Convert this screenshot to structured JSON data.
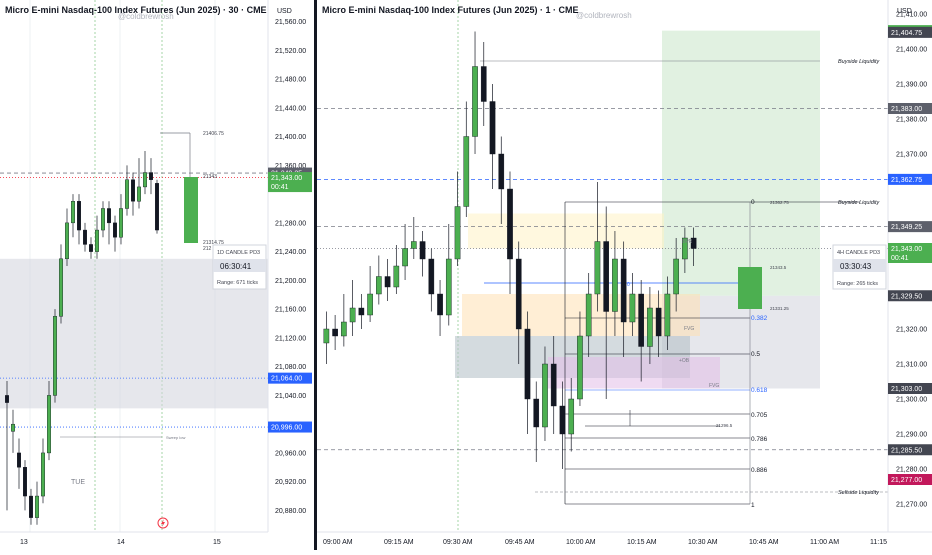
{
  "left": {
    "title": "Micro E-mini Nasdaq-100 Index Futures (Jun 2025) · 30 · CME",
    "watermark": "@coldbrewrosh",
    "currency": "USD",
    "ticks": [
      "21,560.00",
      "21,520.00",
      "21,480.00",
      "21,440.00",
      "21,400.00",
      "21,360.00",
      "21,280.00",
      "21,240.00",
      "21,200.00",
      "21,160.00",
      "21,120.00",
      "21,080.00",
      "21,040.00",
      "20,960.00",
      "20,920.00",
      "20,880.00"
    ],
    "tags": [
      {
        "text": "21,349.25",
        "sub": "",
        "color": "#5d606b"
      },
      {
        "text": "21,343.00",
        "sub": "00:41",
        "color": "#4caf50"
      },
      {
        "text": "21,064.00",
        "sub": "",
        "color": "#2962ff"
      },
      {
        "text": "20,996.00",
        "sub": "",
        "color": "#2962ff"
      }
    ],
    "xlabels": [
      "13",
      "14",
      "15"
    ],
    "day_label": "TUE",
    "annotations": {
      "high": "21406.75",
      "mid": "21343",
      "l1": "21314.75",
      "l2": "212",
      "small": "Sweep low"
    },
    "candle_box": {
      "title": "1D CANDLE PD3",
      "timer": "06:30:41",
      "range": "Range: 671 ticks"
    }
  },
  "right": {
    "title": "Micro E-mini Nasdaq-100 Index Futures (Jun 2025) · 1 · CME",
    "watermark": "@coldbrewrosh",
    "currency": "USD",
    "ticks": [
      "21,410.00",
      "21,400.00",
      "21,390.00",
      "21,380.00",
      "21,370.00",
      "21,340.00",
      "21,320.00",
      "21,310.00",
      "21,300.00",
      "21,290.00",
      "21,280.00",
      "21,270.00"
    ],
    "tags": [
      {
        "text": "21,405.25",
        "color": "#4caf50"
      },
      {
        "text": "21,404.75",
        "color": "#434651"
      },
      {
        "text": "21,383.00",
        "color": "#5d606b"
      },
      {
        "text": "21,362.75",
        "color": "#2962ff"
      },
      {
        "text": "21,349.25",
        "color": "#5d606b"
      },
      {
        "text": "21,343.00",
        "color": "#4caf50"
      },
      {
        "text": "21,329.50",
        "color": "#434651"
      },
      {
        "text": "21,303.00",
        "color": "#434651"
      },
      {
        "text": "21,285.50",
        "color": "#434651"
      },
      {
        "text": "21,277.00",
        "color": "#c2185b"
      }
    ],
    "tag_sub": "00:41",
    "xlabels": [
      "09:00 AM",
      "09:15 AM",
      "09:30 AM",
      "09:45 AM",
      "10:00 AM",
      "10:15 AM",
      "10:30 AM",
      "10:45 AM",
      "11:00 AM",
      "11:15"
    ],
    "liquidity": {
      "buy1": "Buyside Liquidity",
      "buy2": "Buyside Liquidity",
      "sell": "Sellside Liquidity"
    },
    "fib": [
      "0",
      "0.382",
      "0.5",
      "0.618",
      "0.705",
      "0.786",
      "0.886",
      "1"
    ],
    "fib_prices": {
      "top": "21362.75",
      "mid": "21343.5",
      "l1": "21331.25",
      "low": "21296.5"
    },
    "labels": {
      "bpr": "BPR",
      "fvg1": "FVG",
      "fvg2": "FVG",
      "ob": "+OB",
      "zero": "0"
    },
    "candle_box": {
      "title": "4H CANDLE PD3",
      "timer": "03:30:43",
      "range": "Range: 265 ticks"
    }
  },
  "chart_data": [
    {
      "type": "candlestick",
      "title": "Micro E-mini Nasdaq-100 Index Futures (Jun 2025) · 30 · CME",
      "ylim": [
        20850,
        21590
      ],
      "candles": [
        [
          21040,
          21030,
          21060,
          20880
        ],
        [
          20990,
          21000,
          21020,
          20960
        ],
        [
          20960,
          20940,
          20980,
          20910
        ],
        [
          20940,
          20900,
          20950,
          20880
        ],
        [
          20900,
          20870,
          20910,
          20860
        ],
        [
          20870,
          20900,
          20920,
          20860
        ],
        [
          20900,
          20960,
          20980,
          20890
        ],
        [
          20960,
          21040,
          21060,
          20950
        ],
        [
          21040,
          21150,
          21160,
          21030
        ],
        [
          21150,
          21230,
          21250,
          21140
        ],
        [
          21230,
          21280,
          21300,
          21220
        ],
        [
          21280,
          21310,
          21320,
          21260
        ],
        [
          21310,
          21270,
          21320,
          21250
        ],
        [
          21270,
          21250,
          21280,
          21240
        ],
        [
          21250,
          21240,
          21260,
          21230
        ],
        [
          21240,
          21270,
          21290,
          21230
        ],
        [
          21270,
          21300,
          21310,
          21260
        ],
        [
          21300,
          21280,
          21310,
          21250
        ],
        [
          21280,
          21260,
          21290,
          21240
        ],
        [
          21260,
          21300,
          21320,
          21250
        ],
        [
          21300,
          21340,
          21360,
          21290
        ],
        [
          21340,
          21310,
          21350,
          21290
        ],
        [
          21310,
          21330,
          21370,
          21300
        ],
        [
          21330,
          21350,
          21380,
          21320
        ],
        [
          21350,
          21340,
          21370,
          21320
        ],
        [
          21335,
          21270,
          21340,
          21265
        ]
      ],
      "hlines": [
        {
          "y": 21349.25,
          "style": "dashed",
          "color": "#787b86"
        },
        {
          "y": 21343,
          "style": "dotted",
          "color": "#f23645"
        },
        {
          "y": 21064,
          "style": "dotted",
          "color": "#2962ff"
        },
        {
          "y": 20996,
          "style": "dotted",
          "color": "#2962ff"
        }
      ],
      "zones": [
        {
          "y1": 21230,
          "y2": 21022,
          "color": "#d1d4dc"
        }
      ]
    },
    {
      "type": "candlestick",
      "title": "Micro E-mini Nasdaq-100 Index Futures (Jun 2025) · 1 · CME",
      "ylim": [
        21262,
        21414
      ],
      "candles": [
        [
          21316,
          21320,
          21325,
          21310
        ],
        [
          21320,
          21318,
          21324,
          21314
        ],
        [
          21318,
          21322,
          21330,
          21315
        ],
        [
          21322,
          21326,
          21334,
          21318
        ],
        [
          21326,
          21324,
          21330,
          21320
        ],
        [
          21324,
          21330,
          21338,
          21322
        ],
        [
          21330,
          21335,
          21341,
          21327
        ],
        [
          21335,
          21332,
          21340,
          21328
        ],
        [
          21332,
          21338,
          21344,
          21330
        ],
        [
          21338,
          21343,
          21350,
          21334
        ],
        [
          21343,
          21345,
          21352,
          21340
        ],
        [
          21345,
          21340,
          21348,
          21335
        ],
        [
          21340,
          21330,
          21343,
          21325
        ],
        [
          21330,
          21324,
          21334,
          21318
        ],
        [
          21324,
          21340,
          21350,
          21321
        ],
        [
          21340,
          21355,
          21365,
          21338
        ],
        [
          21355,
          21375,
          21385,
          21352
        ],
        [
          21375,
          21395,
          21405,
          21370
        ],
        [
          21395,
          21385,
          21402,
          21378
        ],
        [
          21385,
          21370,
          21390,
          21360
        ],
        [
          21370,
          21360,
          21375,
          21350
        ],
        [
          21360,
          21340,
          21365,
          21330
        ],
        [
          21340,
          21320,
          21345,
          21310
        ],
        [
          21320,
          21300,
          21325,
          21290
        ],
        [
          21300,
          21292,
          21305,
          21282
        ],
        [
          21292,
          21310,
          21315,
          21288
        ],
        [
          21310,
          21298,
          21318,
          21290
        ],
        [
          21298,
          21290,
          21305,
          21280
        ],
        [
          21290,
          21300,
          21306,
          21285
        ],
        [
          21300,
          21318,
          21325,
          21298
        ],
        [
          21318,
          21330,
          21336,
          21312
        ],
        [
          21330,
          21345,
          21362,
          21325
        ],
        [
          21345,
          21325,
          21355,
          21300
        ],
        [
          21325,
          21340,
          21348,
          21318
        ],
        [
          21340,
          21322,
          21345,
          21312
        ],
        [
          21322,
          21330,
          21336,
          21318
        ],
        [
          21330,
          21315,
          21334,
          21305
        ],
        [
          21315,
          21326,
          21332,
          21310
        ],
        [
          21326,
          21318,
          21331,
          21312
        ],
        [
          21318,
          21330,
          21335,
          21314
        ],
        [
          21330,
          21340,
          21346,
          21325
        ],
        [
          21340,
          21346,
          21349,
          21336
        ],
        [
          21346,
          21343,
          21349,
          21338
        ]
      ],
      "hlines": [
        {
          "y": 21383,
          "style": "dashed",
          "color": "#787b86"
        },
        {
          "y": 21362.75,
          "style": "dashed",
          "color": "#2962ff"
        },
        {
          "y": 21349.25,
          "style": "dashed",
          "color": "#787b86"
        },
        {
          "y": 21343,
          "style": "dotted",
          "color": "#787b86"
        },
        {
          "y": 21285.5,
          "style": "dashed",
          "color": "#787b86"
        }
      ],
      "zones": [
        {
          "y1": 21405.25,
          "y2": 21329.5,
          "color": "#c8e6c9"
        },
        {
          "y1": 21329.5,
          "y2": 21303,
          "color": "#d1d4dc"
        },
        {
          "y1": 21353,
          "y2": 21343,
          "color": "#fff3c4"
        },
        {
          "y1": 21330,
          "y2": 21318,
          "color": "#ffe0b2"
        },
        {
          "y1": 21318,
          "y2": 21306,
          "color": "#b0bec5"
        },
        {
          "y1": 21312,
          "y2": 21303,
          "color": "#e1bee7"
        }
      ]
    }
  ]
}
